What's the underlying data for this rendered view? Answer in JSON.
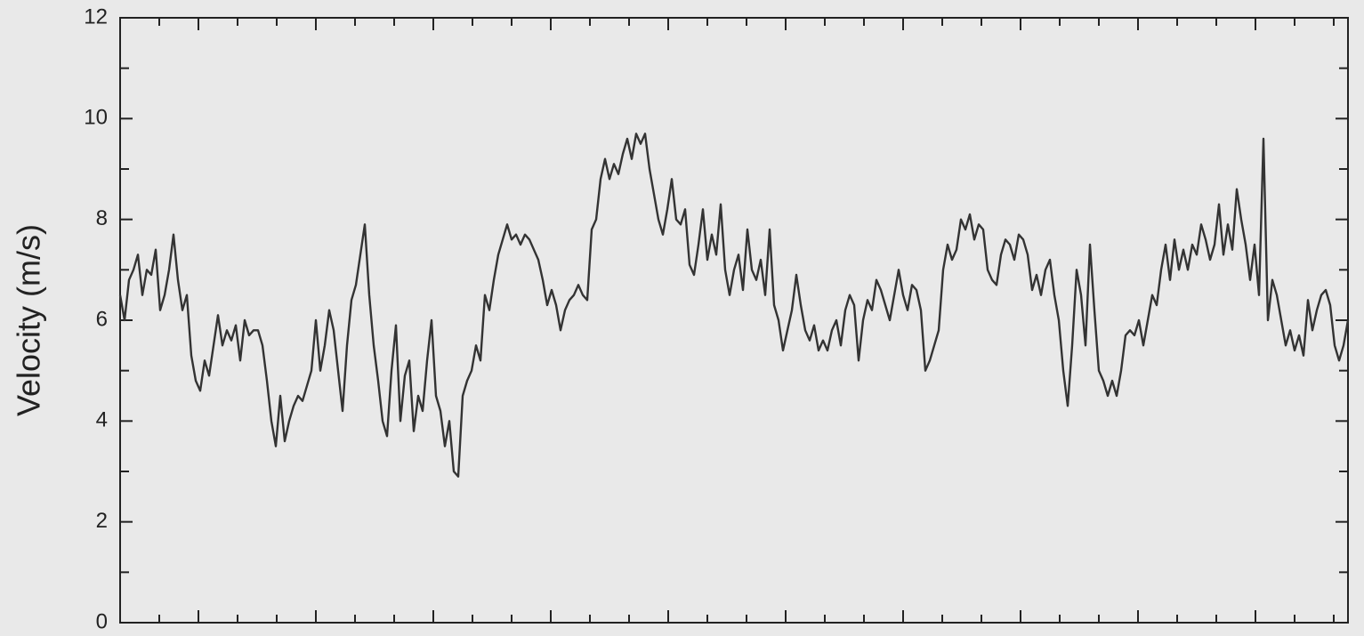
{
  "chart_data": {
    "type": "line",
    "ylabel": "Velocity (m/s)",
    "ylim": [
      0,
      12
    ],
    "yticks": [
      0,
      2,
      4,
      6,
      8,
      10,
      12
    ],
    "series": [
      {
        "color": "#333333",
        "values": [
          6.5,
          6.0,
          6.8,
          7.0,
          7.3,
          6.5,
          7.0,
          6.9,
          7.4,
          6.2,
          6.5,
          7.0,
          7.7,
          6.8,
          6.2,
          6.5,
          5.3,
          4.8,
          4.6,
          5.2,
          4.9,
          5.5,
          6.1,
          5.5,
          5.8,
          5.6,
          5.9,
          5.2,
          6.0,
          5.7,
          5.8,
          5.8,
          5.5,
          4.8,
          4.0,
          3.5,
          4.5,
          3.6,
          4.0,
          4.3,
          4.5,
          4.4,
          4.7,
          5.0,
          6.0,
          5.0,
          5.5,
          6.2,
          5.8,
          5.0,
          4.2,
          5.5,
          6.4,
          6.7,
          7.3,
          7.9,
          6.5,
          5.5,
          4.8,
          4.0,
          3.7,
          5.0,
          5.9,
          4.0,
          4.9,
          5.2,
          3.8,
          4.5,
          4.2,
          5.2,
          6.0,
          4.5,
          4.2,
          3.5,
          4.0,
          3.0,
          2.9,
          4.5,
          4.8,
          5.0,
          5.5,
          5.2,
          6.5,
          6.2,
          6.8,
          7.3,
          7.6,
          7.9,
          7.6,
          7.7,
          7.5,
          7.7,
          7.6,
          7.4,
          7.2,
          6.8,
          6.3,
          6.6,
          6.3,
          5.8,
          6.2,
          6.4,
          6.5,
          6.7,
          6.5,
          6.4,
          7.8,
          8.0,
          8.8,
          9.2,
          8.8,
          9.1,
          8.9,
          9.3,
          9.6,
          9.2,
          9.7,
          9.5,
          9.7,
          9.0,
          8.5,
          8.0,
          7.7,
          8.2,
          8.8,
          8.0,
          7.9,
          8.2,
          7.1,
          6.9,
          7.5,
          8.2,
          7.2,
          7.7,
          7.3,
          8.3,
          7.0,
          6.5,
          7.0,
          7.3,
          6.6,
          7.8,
          7.0,
          6.8,
          7.2,
          6.5,
          7.8,
          6.3,
          6.0,
          5.4,
          5.8,
          6.2,
          6.9,
          6.3,
          5.8,
          5.6,
          5.9,
          5.4,
          5.6,
          5.4,
          5.8,
          6.0,
          5.5,
          6.2,
          6.5,
          6.3,
          5.2,
          6.0,
          6.4,
          6.2,
          6.8,
          6.6,
          6.3,
          6.0,
          6.5,
          7.0,
          6.5,
          6.2,
          6.7,
          6.6,
          6.2,
          5.0,
          5.2,
          5.5,
          5.8,
          7.0,
          7.5,
          7.2,
          7.4,
          8.0,
          7.8,
          8.1,
          7.6,
          7.9,
          7.8,
          7.0,
          6.8,
          6.7,
          7.3,
          7.6,
          7.5,
          7.2,
          7.7,
          7.6,
          7.3,
          6.6,
          6.9,
          6.5,
          7.0,
          7.2,
          6.5,
          6.0,
          5.0,
          4.3,
          5.5,
          7.0,
          6.5,
          5.5,
          7.5,
          6.2,
          5.0,
          4.8,
          4.5,
          4.8,
          4.5,
          5.0,
          5.7,
          5.8,
          5.7,
          6.0,
          5.5,
          6.0,
          6.5,
          6.3,
          7.0,
          7.5,
          6.8,
          7.6,
          7.0,
          7.4,
          7.0,
          7.5,
          7.3,
          7.9,
          7.6,
          7.2,
          7.5,
          8.3,
          7.3,
          7.9,
          7.4,
          8.6,
          8.0,
          7.5,
          6.8,
          7.5,
          6.5,
          9.6,
          6.0,
          6.8,
          6.5,
          6.0,
          5.5,
          5.8,
          5.4,
          5.7,
          5.3,
          6.4,
          5.8,
          6.2,
          6.5,
          6.6,
          6.3,
          5.5,
          5.2,
          5.5,
          6.0
        ]
      }
    ]
  }
}
